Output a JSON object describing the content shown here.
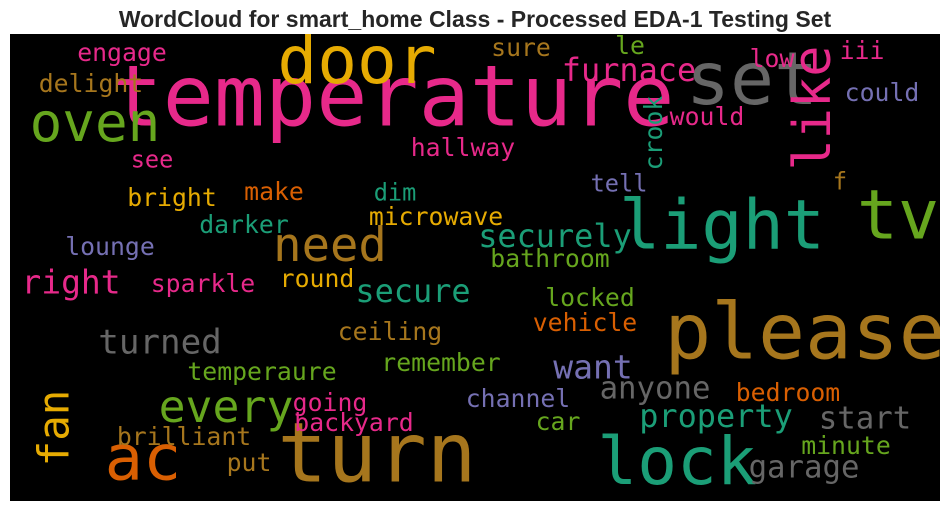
{
  "chart_data": {
    "type": "wordcloud",
    "title": "WordCloud for smart_home Class - Processed EDA-1 Testing Set",
    "background": "#000000",
    "words": [
      {
        "text": "temperature",
        "weight": 72,
        "color": "#e7298a",
        "rotate": 0
      },
      {
        "text": "turn",
        "weight": 70,
        "color": "#a6761d",
        "rotate": 0
      },
      {
        "text": "please",
        "weight": 66,
        "color": "#a6761d",
        "rotate": 0
      },
      {
        "text": "set",
        "weight": 62,
        "color": "#666666",
        "rotate": 0
      },
      {
        "text": "light",
        "weight": 58,
        "color": "#1b9e77",
        "rotate": 0
      },
      {
        "text": "tv",
        "weight": 58,
        "color": "#66a61e",
        "rotate": 0
      },
      {
        "text": "door",
        "weight": 56,
        "color": "#e6ab02",
        "rotate": 0
      },
      {
        "text": "lock",
        "weight": 56,
        "color": "#1b9e77",
        "rotate": 0
      },
      {
        "text": "ac",
        "weight": 54,
        "color": "#d95f02",
        "rotate": 0
      },
      {
        "text": "oven",
        "weight": 46,
        "color": "#66a61e",
        "rotate": 0
      },
      {
        "text": "like",
        "weight": 44,
        "color": "#e7298a",
        "rotate": -90
      },
      {
        "text": "need",
        "weight": 40,
        "color": "#a6761d",
        "rotate": 0
      },
      {
        "text": "every",
        "weight": 38,
        "color": "#66a61e",
        "rotate": 0
      },
      {
        "text": "fan",
        "weight": 36,
        "color": "#e6ab02",
        "rotate": -90
      },
      {
        "text": "furnace",
        "weight": 27,
        "color": "#e7298a",
        "rotate": 0
      },
      {
        "text": "securely",
        "weight": 27,
        "color": "#1b9e77",
        "rotate": 0
      },
      {
        "text": "secure",
        "weight": 27,
        "color": "#1b9e77",
        "rotate": 0
      },
      {
        "text": "property",
        "weight": 27,
        "color": "#1b9e77",
        "rotate": 0
      },
      {
        "text": "turned",
        "weight": 29,
        "color": "#666666",
        "rotate": 0
      },
      {
        "text": "right",
        "weight": 28,
        "color": "#e7298a",
        "rotate": 0
      },
      {
        "text": "want",
        "weight": 28,
        "color": "#7570b3",
        "rotate": 0
      },
      {
        "text": "start",
        "weight": 26,
        "color": "#666666",
        "rotate": 0
      },
      {
        "text": "anyone",
        "weight": 26,
        "color": "#666666",
        "rotate": 0
      },
      {
        "text": "garage",
        "weight": 26,
        "color": "#666666",
        "rotate": 0
      },
      {
        "text": "crook",
        "weight": 21,
        "color": "#1b9e77",
        "rotate": -90
      },
      {
        "text": "engage",
        "weight": 21,
        "color": "#e7298a",
        "rotate": 0
      },
      {
        "text": "delight",
        "weight": 21,
        "color": "#a6761d",
        "rotate": 0
      },
      {
        "text": "sure",
        "weight": 21,
        "color": "#a6761d",
        "rotate": 0
      },
      {
        "text": "le",
        "weight": 21,
        "color": "#66a61e",
        "rotate": 0
      },
      {
        "text": "low",
        "weight": 21,
        "color": "#e7298a",
        "rotate": 0
      },
      {
        "text": "iii",
        "weight": 21,
        "color": "#e7298a",
        "rotate": 0
      },
      {
        "text": "could",
        "weight": 21,
        "color": "#7570b3",
        "rotate": 0
      },
      {
        "text": "would",
        "weight": 21,
        "color": "#e7298a",
        "rotate": 0
      },
      {
        "text": "see",
        "weight": 20,
        "color": "#e7298a",
        "rotate": 0
      },
      {
        "text": "hallway",
        "weight": 21,
        "color": "#e7298a",
        "rotate": 0
      },
      {
        "text": "tell",
        "weight": 20,
        "color": "#7570b3",
        "rotate": 0
      },
      {
        "text": "f",
        "weight": 20,
        "color": "#a6761d",
        "rotate": 0
      },
      {
        "text": "make",
        "weight": 21,
        "color": "#d95f02",
        "rotate": 0
      },
      {
        "text": "bright",
        "weight": 21,
        "color": "#e6ab02",
        "rotate": 0
      },
      {
        "text": "dim",
        "weight": 20,
        "color": "#1b9e77",
        "rotate": 0
      },
      {
        "text": "darker",
        "weight": 21,
        "color": "#1b9e77",
        "rotate": 0
      },
      {
        "text": "microwave",
        "weight": 21,
        "color": "#e6ab02",
        "rotate": 0
      },
      {
        "text": "lounge",
        "weight": 21,
        "color": "#7570b3",
        "rotate": 0
      },
      {
        "text": "bathroom",
        "weight": 21,
        "color": "#66a61e",
        "rotate": 0
      },
      {
        "text": "sparkle",
        "weight": 21,
        "color": "#e7298a",
        "rotate": 0
      },
      {
        "text": "round",
        "weight": 21,
        "color": "#e6ab02",
        "rotate": 0
      },
      {
        "text": "locked",
        "weight": 21,
        "color": "#66a61e",
        "rotate": 0
      },
      {
        "text": "vehicle",
        "weight": 21,
        "color": "#d95f02",
        "rotate": 0
      },
      {
        "text": "ceiling",
        "weight": 21,
        "color": "#a6761d",
        "rotate": 0
      },
      {
        "text": "remember",
        "weight": 21,
        "color": "#66a61e",
        "rotate": 0
      },
      {
        "text": "temperaure",
        "weight": 21,
        "color": "#66a61e",
        "rotate": 0
      },
      {
        "text": "bedroom",
        "weight": 21,
        "color": "#d95f02",
        "rotate": 0
      },
      {
        "text": "channel",
        "weight": 21,
        "color": "#7570b3",
        "rotate": 0
      },
      {
        "text": "going",
        "weight": 21,
        "color": "#e7298a",
        "rotate": 0
      },
      {
        "text": "backyard",
        "weight": 21,
        "color": "#e7298a",
        "rotate": 0
      },
      {
        "text": "car",
        "weight": 21,
        "color": "#66a61e",
        "rotate": 0
      },
      {
        "text": "minute",
        "weight": 21,
        "color": "#66a61e",
        "rotate": 0
      },
      {
        "text": "brilliant",
        "weight": 21,
        "color": "#a6761d",
        "rotate": 0
      },
      {
        "text": "put",
        "weight": 21,
        "color": "#a6761d",
        "rotate": 0
      }
    ]
  }
}
